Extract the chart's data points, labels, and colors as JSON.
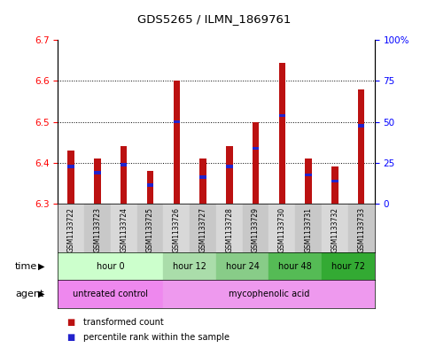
{
  "title": "GDS5265 / ILMN_1869761",
  "samples": [
    "GSM1133722",
    "GSM1133723",
    "GSM1133724",
    "GSM1133725",
    "GSM1133726",
    "GSM1133727",
    "GSM1133728",
    "GSM1133729",
    "GSM1133730",
    "GSM1133731",
    "GSM1133732",
    "GSM1133733"
  ],
  "bar_base": 6.3,
  "transformed_counts": [
    6.43,
    6.41,
    6.44,
    6.38,
    6.6,
    6.41,
    6.44,
    6.5,
    6.645,
    6.41,
    6.39,
    6.58
  ],
  "percentile_values": [
    6.39,
    6.375,
    6.395,
    6.345,
    6.5,
    6.365,
    6.39,
    6.435,
    6.515,
    6.37,
    6.355,
    6.49
  ],
  "ylim_left": [
    6.3,
    6.7
  ],
  "ylim_right": [
    0,
    100
  ],
  "yticks_left": [
    6.3,
    6.4,
    6.5,
    6.6,
    6.7
  ],
  "yticks_right": [
    0,
    25,
    50,
    75,
    100
  ],
  "ytick_labels_right": [
    "0",
    "25",
    "50",
    "75",
    "100%"
  ],
  "bar_color": "#bb1111",
  "percentile_color": "#2222cc",
  "time_groups": [
    {
      "label": "hour 0",
      "indices": [
        0,
        1,
        2,
        3
      ],
      "color": "#ccffcc"
    },
    {
      "label": "hour 12",
      "indices": [
        4,
        5
      ],
      "color": "#aaddaa"
    },
    {
      "label": "hour 24",
      "indices": [
        6,
        7
      ],
      "color": "#88cc88"
    },
    {
      "label": "hour 48",
      "indices": [
        8,
        9
      ],
      "color": "#55bb55"
    },
    {
      "label": "hour 72",
      "indices": [
        10,
        11
      ],
      "color": "#33aa33"
    }
  ],
  "agent_groups": [
    {
      "label": "untreated control",
      "indices": [
        0,
        1,
        2,
        3
      ],
      "color": "#ee88ee"
    },
    {
      "label": "mycophenolic acid",
      "indices": [
        4,
        5,
        6,
        7,
        8,
        9,
        10,
        11
      ],
      "color": "#ee99ee"
    }
  ],
  "legend_red_label": "transformed count",
  "legend_blue_label": "percentile rank within the sample",
  "time_label": "time",
  "agent_label": "agent",
  "background_color": "#ffffff",
  "bar_width": 0.25,
  "pct_bar_width": 0.25,
  "pct_bar_height": 0.008,
  "col_colors": [
    "#d8d8d8",
    "#c8c8c8"
  ]
}
